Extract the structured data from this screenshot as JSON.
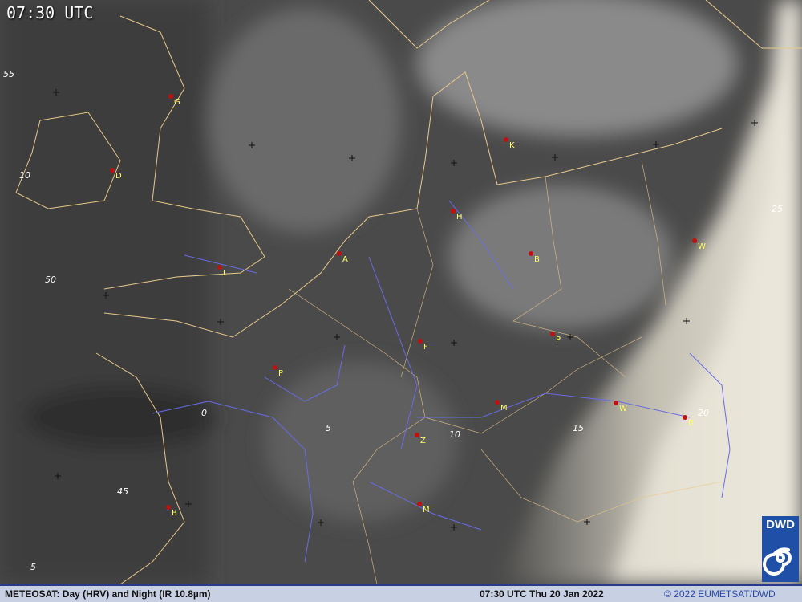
{
  "header": {
    "time": "07:30 UTC"
  },
  "footer": {
    "product": "METEOSAT: Day (HRV) and Night (IR 10.8µm)",
    "datetime": "07:30 UTC Thu 20 Jan 2022",
    "copyright": "© 2022 EUMETSAT/DWD"
  },
  "logo": {
    "text": "DWD"
  },
  "colors": {
    "coastline": "#e8c88a",
    "rivers": "#6a6ae8",
    "city_marker": "#c01010",
    "city_label": "#ffff66",
    "footer_bg": "#c8d0e4",
    "logo_bg": "#1f4fa6"
  },
  "cities": [
    {
      "label": "G"
    },
    {
      "label": "D"
    },
    {
      "label": "L"
    },
    {
      "label": "A"
    },
    {
      "label": "H"
    },
    {
      "label": "K"
    },
    {
      "label": "B"
    },
    {
      "label": "W"
    },
    {
      "label": "P"
    },
    {
      "label": "F"
    },
    {
      "label": "P"
    },
    {
      "label": "M"
    },
    {
      "label": "W"
    },
    {
      "label": "B"
    },
    {
      "label": "Z"
    },
    {
      "label": "M"
    },
    {
      "label": "B"
    }
  ],
  "grid_labels": [
    "55",
    "10",
    "50",
    "45",
    "5",
    "0",
    "5",
    "10",
    "15",
    "20",
    "25"
  ]
}
